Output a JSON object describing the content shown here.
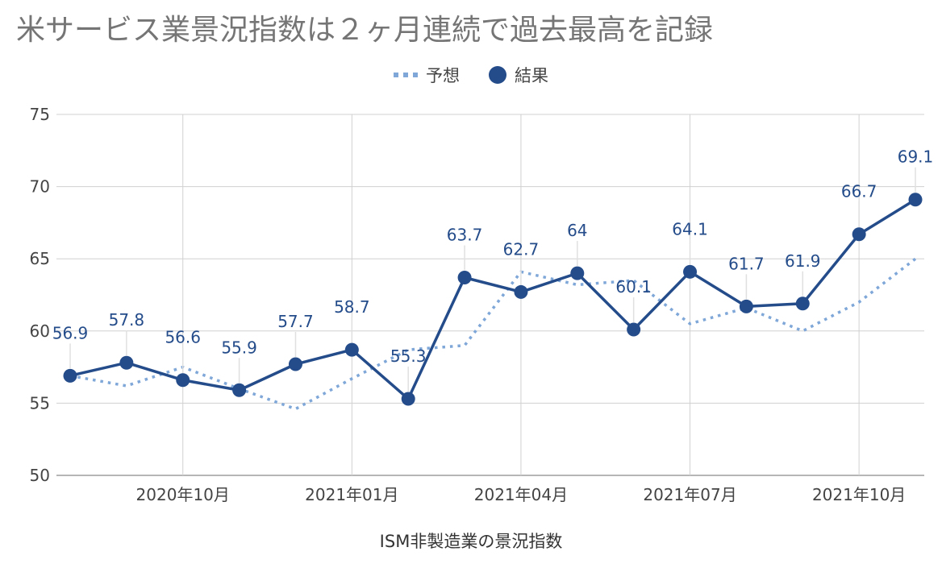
{
  "chart_data": {
    "type": "line",
    "title": "米サービス業景況指数は２ヶ月連続で過去最高を記録",
    "xlabel": "ISM非製造業の景況指数",
    "ylabel": "",
    "ylim": [
      50,
      75
    ],
    "yticks": [
      50,
      55,
      60,
      65,
      70,
      75
    ],
    "x_months": [
      "2020-08",
      "2020-09",
      "2020-10",
      "2020-11",
      "2020-12",
      "2021-01",
      "2021-02",
      "2021-03",
      "2021-04",
      "2021-05",
      "2021-06",
      "2021-07",
      "2021-08",
      "2021-09",
      "2021-10",
      "2021-11"
    ],
    "x_tick_labels": [
      {
        "month": "2020-10",
        "label": "2020年10月"
      },
      {
        "month": "2021-01",
        "label": "2021年01月"
      },
      {
        "month": "2021-04",
        "label": "2021年04月"
      },
      {
        "month": "2021-07",
        "label": "2021年07月"
      },
      {
        "month": "2021-10",
        "label": "2021年10月"
      }
    ],
    "grid": true,
    "legend_position": "top-center",
    "series": [
      {
        "name": "予想",
        "style": "dotted",
        "color": "#7fa7d8",
        "values": [
          56.9,
          56.2,
          57.5,
          56.0,
          54.6,
          56.7,
          58.7,
          59.0,
          64.1,
          63.2,
          63.5,
          60.5,
          61.6,
          60.0,
          62.0,
          65.0
        ]
      },
      {
        "name": "結果",
        "style": "solid-markers",
        "color": "#244c8a",
        "values": [
          56.9,
          57.8,
          56.6,
          55.9,
          57.7,
          58.7,
          55.3,
          63.7,
          62.7,
          64.0,
          60.1,
          64.1,
          61.7,
          61.9,
          66.7,
          69.1
        ],
        "labels": [
          "56.9",
          "57.8",
          "56.6",
          "55.9",
          "57.7",
          "58.7",
          "55.3",
          "63.7",
          "62.7",
          "64",
          "60.1",
          "64.1",
          "61.7",
          "61.9",
          "66.7",
          "69.1"
        ]
      }
    ]
  }
}
